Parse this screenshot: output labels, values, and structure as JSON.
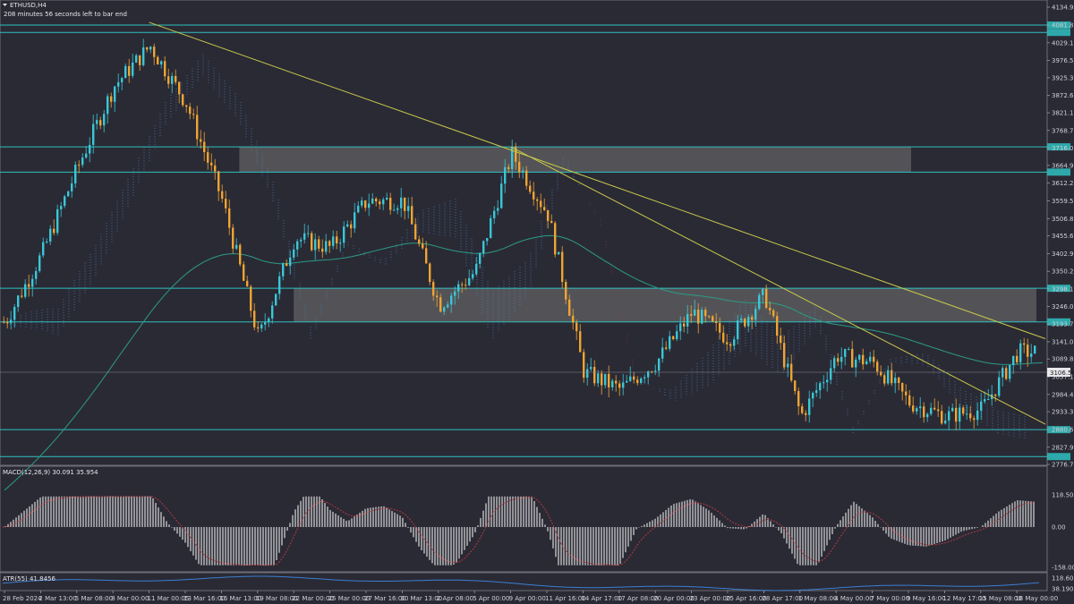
{
  "header": {
    "symbol": "ETHUSD,H4",
    "timer": "208 minutes 56 seconds left to bar end"
  },
  "indicators": {
    "macd_label": "MACD(12,26,9) 30.091 35.954",
    "atr_label": "ATR(55) 41.8456"
  },
  "colors": {
    "background": "#2a2a35",
    "bull": "#3ac7d6",
    "bear": "#f0a432",
    "level": "#2fc0bf",
    "zone": "#6a6a6a",
    "trend": "#c9c94a",
    "ma": "#2b9c86",
    "cloud_bull": "#4a86c0",
    "cloud_bear": "#8a3a44",
    "macd_hist": "#d9d9d9",
    "macd_signal": "#c23b3b",
    "atr": "#3b7fd0",
    "current_price_tag": "#e8e8ea"
  },
  "price_axis": {
    "labels": [
      "4134.95",
      "4081.85",
      "4029.15",
      "3976.50",
      "3925.30",
      "3872.60",
      "3821.15",
      "3768.75",
      "3716.05",
      "3664.90",
      "3612.20",
      "3559.50",
      "3506.80",
      "3455.65",
      "3402.95",
      "3350.25",
      "3298.10",
      "3246.00",
      "3193.70",
      "3141.00",
      "3089.85",
      "3037.15",
      "2984.45",
      "2933.30",
      "2880.60",
      "2827.90",
      "2776.75"
    ],
    "current_price": "3106.56"
  },
  "macd_axis": {
    "labels": [
      "118.508",
      "0.00",
      "-158.003"
    ]
  },
  "atr_axis": {
    "labels": [
      "118.6018",
      "38.1906"
    ]
  },
  "time_axis": {
    "labels": [
      "28 Feb 2024",
      "2 Mar 13:00",
      "5 Mar 08:00",
      "8 Mar 00:00",
      "11 Mar 00:05",
      "13 Mar 16:00",
      "16 Mar 13:00",
      "19 Mar 08:00",
      "22 Mar 00:00",
      "25 Mar 00:00",
      "27 Mar 16:00",
      "30 Mar 13:00",
      "2 Apr 08:00",
      "5 Apr 00:00",
      "9 Apr 00:00",
      "11 Apr 16:00",
      "14 Apr 17:00",
      "17 Apr 08:00",
      "20 Apr 00:00",
      "23 Apr 00:00",
      "25 Apr 16:00",
      "28 Apr 17:00",
      "1 May 08:00",
      "4 May 00:00",
      "7 May 00:00",
      "9 May 16:00",
      "12 May 17:00",
      "15 May 08:00",
      "18 May 00:00"
    ]
  },
  "chart_data": {
    "type": "candlestick",
    "symbol": "ETHUSD",
    "timeframe": "H4",
    "ylim": [
      2776.75,
      4134.95
    ],
    "x_start": "28 Feb 2024",
    "x_end": "19 May 2024",
    "current_price": 3106.56,
    "price_path": [
      {
        "x": "28 Feb 2024",
        "close": 3200
      },
      {
        "x": "2 Mar 13:00",
        "close": 3400
      },
      {
        "x": "5 Mar 08:00",
        "close": 3660
      },
      {
        "x": "8 Mar 00:00",
        "close": 3900
      },
      {
        "x": "11 Mar 00:05",
        "close": 4020
      },
      {
        "x": "13 Mar 16:00",
        "close": 3850
      },
      {
        "x": "16 Mar 13:00",
        "close": 3560
      },
      {
        "x": "19 Mar 08:00",
        "close": 3150
      },
      {
        "x": "22 Mar 00:00",
        "close": 3450
      },
      {
        "x": "25 Mar 00:00",
        "close": 3420
      },
      {
        "x": "27 Mar 16:00",
        "close": 3560
      },
      {
        "x": "30 Mar 13:00",
        "close": 3560
      },
      {
        "x": "2 Apr 08:00",
        "close": 3250
      },
      {
        "x": "5 Apr 00:00",
        "close": 3350
      },
      {
        "x": "9 Apr 00:00",
        "close": 3700
      },
      {
        "x": "11 Apr 16:00",
        "close": 3520
      },
      {
        "x": "14 Apr 17:00",
        "close": 3050
      },
      {
        "x": "17 Apr 08:00",
        "close": 3000
      },
      {
        "x": "20 Apr 00:00",
        "close": 3080
      },
      {
        "x": "23 Apr 00:00",
        "close": 3230
      },
      {
        "x": "25 Apr 16:00",
        "close": 3150
      },
      {
        "x": "28 Apr 17:00",
        "close": 3280
      },
      {
        "x": "1 May 08:00",
        "close": 2920
      },
      {
        "x": "4 May 00:00",
        "close": 3100
      },
      {
        "x": "7 May 00:00",
        "close": 3080
      },
      {
        "x": "9 May 16:00",
        "close": 2960
      },
      {
        "x": "12 May 17:00",
        "close": 2920
      },
      {
        "x": "15 May 08:00",
        "close": 2940
      },
      {
        "x": "18 May 00:00",
        "close": 3110
      }
    ],
    "levels": [
      4081.85,
      4060,
      3720,
      3645,
      3300,
      3200,
      2880,
      2800
    ],
    "zones": [
      {
        "from": 3645,
        "to": 3720,
        "x_start": "16 Mar 13:00",
        "x_end": "9 May 16:00"
      },
      {
        "from": 3200,
        "to": 3300,
        "x_start": "22 Mar 00:00",
        "x_end": "18 May 00:00"
      }
    ],
    "trendlines": [
      {
        "from": {
          "x": "11 Mar 00:05",
          "y": 4090
        },
        "to": {
          "x": "18 May 00:00",
          "y": 3180
        }
      },
      {
        "from": {
          "x": "9 Apr 00:00",
          "y": 3720
        },
        "to": {
          "x": "18 May 00:00",
          "y": 2940
        }
      }
    ],
    "macd": {
      "label": "MACD(12,26,9)",
      "macd": 30.091,
      "signal": 35.954,
      "ylim": [
        -158.003,
        118.508
      ]
    },
    "atr": {
      "label": "ATR(55)",
      "value": 41.8456,
      "ylim": [
        38.1906,
        118.6018
      ]
    }
  }
}
